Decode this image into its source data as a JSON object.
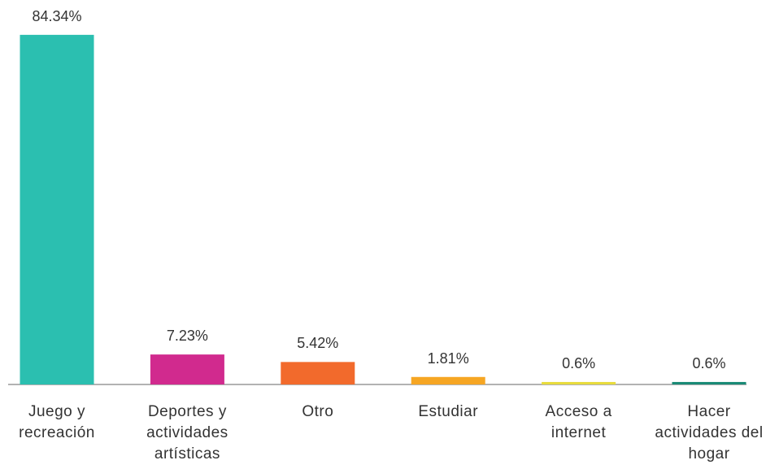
{
  "chart_data": {
    "type": "bar",
    "categories": [
      "Juego y recreación",
      "Deportes y actividades artísticas",
      "Otro",
      "Estudiar",
      "Acceso a internet",
      "Hacer actividades del hogar"
    ],
    "values": [
      84.34,
      7.23,
      5.42,
      1.81,
      0.6,
      0.6
    ],
    "value_labels": [
      "84.34%",
      "7.23%",
      "5.42%",
      "1.81%",
      "0.6%",
      "0.6%"
    ],
    "colors": [
      "#2bbfb0",
      "#d12a8e",
      "#f26a2c",
      "#f6a623",
      "#e8dc3c",
      "#1a8a76"
    ]
  }
}
